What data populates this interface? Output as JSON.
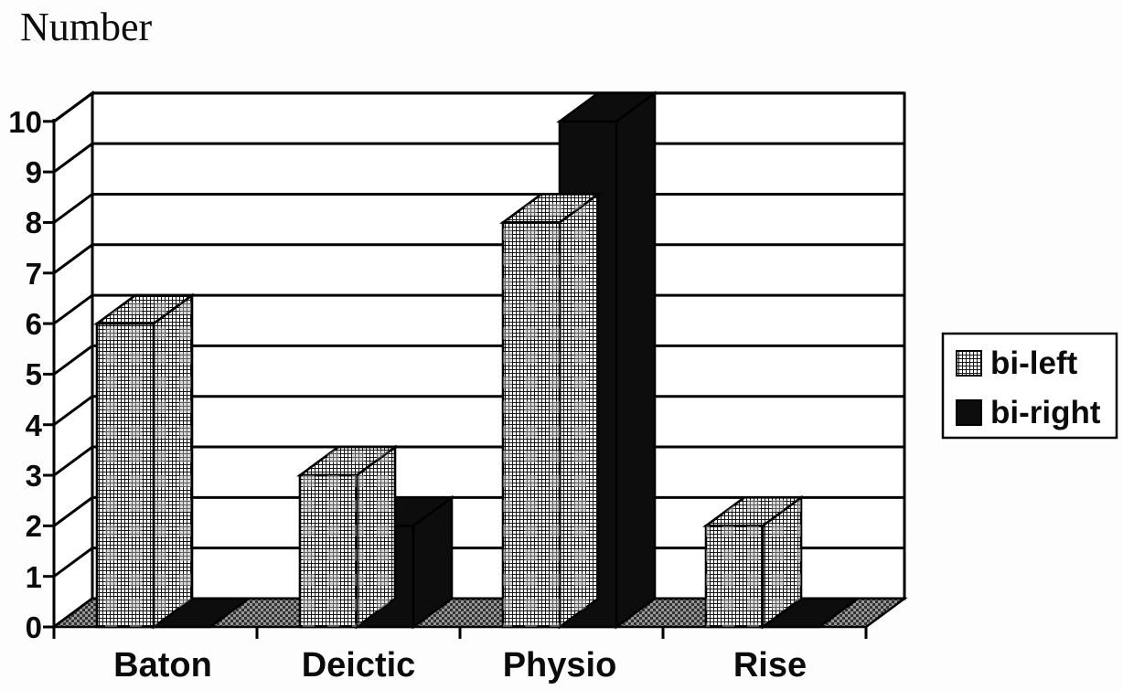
{
  "chart_data": {
    "type": "bar",
    "projection": "3d",
    "title": "",
    "ylabel": "Number",
    "xlabel": "",
    "categories": [
      "Baton",
      "Deictic",
      "Physio",
      "Rise"
    ],
    "series": [
      {
        "name": "bi-left",
        "pattern": "crosshatch",
        "values": [
          6,
          3,
          8,
          2
        ]
      },
      {
        "name": "bi-right",
        "pattern": "solid-black",
        "values": [
          0,
          2,
          10,
          0
        ]
      }
    ],
    "ylim": [
      0,
      10
    ],
    "yticks": [
      0,
      1,
      2,
      3,
      4,
      5,
      6,
      7,
      8,
      9,
      10
    ],
    "grid": true,
    "legend_position": "right",
    "colors": {
      "outline": "#000000",
      "bar_solid": "#0d0d0d",
      "wall": "#ffffff",
      "floor_dark": "#333333",
      "floor_light": "#969696",
      "background": "#fdfdfd"
    }
  }
}
